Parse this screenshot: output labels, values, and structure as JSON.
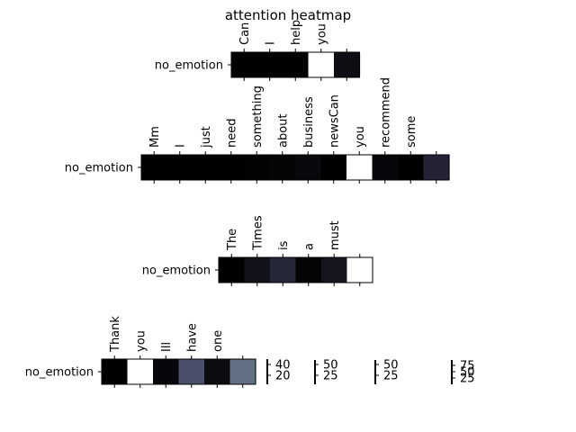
{
  "chart_data": [
    {
      "type": "heatmap",
      "title": "attention heatmap",
      "row_label": "no_emotion",
      "tokens": [
        "Can",
        "I",
        "help",
        "you",
        ""
      ],
      "values": [
        0.0,
        0.0,
        0.0,
        1.0,
        0.08
      ]
    },
    {
      "type": "heatmap",
      "row_label": "no_emotion",
      "tokens": [
        "Mm",
        "I",
        "just",
        "need",
        "something",
        "about",
        "business",
        "newsCan",
        "you",
        "recommend",
        "some",
        ""
      ],
      "values": [
        0.0,
        0.0,
        0.0,
        0.0,
        0.01,
        0.03,
        0.05,
        0.0,
        1.0,
        0.04,
        0.0,
        0.2
      ]
    },
    {
      "type": "heatmap",
      "row_label": "no_emotion",
      "tokens": [
        "The",
        "Times",
        "is",
        "a",
        "must",
        ""
      ],
      "values": [
        0.0,
        0.1,
        0.22,
        0.02,
        0.12,
        1.0
      ]
    },
    {
      "type": "heatmap",
      "row_label": "no_emotion",
      "tokens": [
        "Thank",
        "you",
        "Ill",
        "have",
        "one",
        ""
      ],
      "values": [
        0.0,
        1.0,
        0.04,
        0.42,
        0.06,
        0.55
      ]
    }
  ],
  "colorbars": [
    {
      "ticks": [
        "40",
        "20"
      ]
    },
    {
      "ticks": [
        "50",
        "25"
      ]
    },
    {
      "ticks": [
        "50",
        "25"
      ]
    },
    {
      "ticks": [
        "75",
        "50",
        "25"
      ]
    }
  ]
}
